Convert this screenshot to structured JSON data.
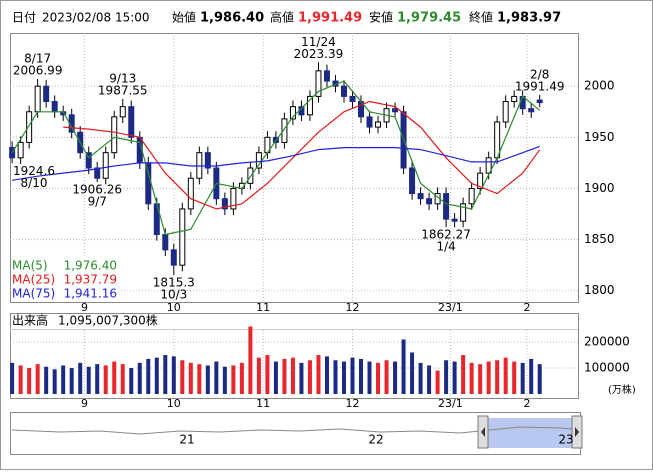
{
  "header": {
    "date_label": "日付",
    "datetime": "2023/02/08 15:00",
    "open_label": "始値",
    "open": "1,986.40",
    "high_label": "高値",
    "high": "1,991.49",
    "low_label": "安値",
    "low": "1,979.45",
    "close_label": "終値",
    "close": "1,983.97"
  },
  "chart_data": {
    "type": "candlestick",
    "x": [
      0,
      2,
      4,
      6,
      8,
      10,
      12,
      14,
      16,
      18,
      20,
      22,
      24,
      26,
      28,
      30,
      32,
      34,
      36,
      38,
      40,
      42,
      44,
      46,
      48,
      50,
      52,
      54,
      56,
      58,
      60,
      62,
      64,
      66,
      68,
      70,
      72,
      74,
      76,
      78,
      80,
      82,
      84,
      86,
      88,
      90,
      92,
      94,
      96,
      98,
      100,
      102,
      104,
      106,
      108,
      110,
      112,
      114,
      116,
      118,
      120,
      122,
      124
    ],
    "open": [
      1940,
      1930,
      1945,
      1975,
      2000,
      1985,
      1975,
      1972,
      1955,
      1935,
      1920,
      1910,
      1935,
      1970,
      1980,
      1950,
      1925,
      1885,
      1855,
      1840,
      1825,
      1880,
      1910,
      1935,
      1920,
      1890,
      1880,
      1900,
      1905,
      1920,
      1935,
      1950,
      1945,
      1968,
      1980,
      1972,
      1990,
      2015,
      2005,
      2000,
      1990,
      1985,
      1970,
      1960,
      1965,
      1978,
      1975,
      1920,
      1895,
      1890,
      1885,
      1895,
      1870,
      1868,
      1885,
      1900,
      1915,
      1930,
      1965,
      1985,
      1990,
      1978,
      1986.4
    ],
    "high": [
      1946,
      1951,
      1981,
      2006.99,
      2006,
      1991,
      1981,
      1978,
      1961,
      1941,
      1926,
      1941,
      1976,
      1987.55,
      1986,
      1956,
      1931,
      1891,
      1861,
      1846,
      1886,
      1916,
      1941,
      1941,
      1926,
      1896,
      1906,
      1911,
      1926,
      1941,
      1956,
      1956,
      1974,
      1986,
      1986,
      1996,
      2023.39,
      2021,
      2011,
      2006,
      1996,
      1991,
      1976,
      1971,
      1984,
      1984,
      1981,
      1926,
      1901,
      1896,
      1901,
      1901,
      1876,
      1891,
      1906,
      1921,
      1936,
      1971,
      1991,
      1996,
      1996,
      1984,
      1991.49
    ],
    "low": [
      1924.6,
      1924,
      1939,
      1969,
      1979,
      1969,
      1966,
      1949,
      1929,
      1914,
      1906.26,
      1904,
      1929,
      1964,
      1944,
      1919,
      1879,
      1849,
      1834,
      1815.3,
      1819,
      1874,
      1904,
      1914,
      1884,
      1874,
      1874,
      1894,
      1899,
      1914,
      1929,
      1939,
      1939,
      1962,
      1966,
      1966,
      1984,
      1999,
      1994,
      1984,
      1979,
      1964,
      1954,
      1954,
      1959,
      1969,
      1914,
      1889,
      1884,
      1879,
      1879,
      1862.27,
      1862,
      1862,
      1879,
      1894,
      1909,
      1924,
      1959,
      1979,
      1972,
      1969,
      1979.45
    ],
    "close": [
      1930,
      1945,
      1975,
      2000,
      1985,
      1975,
      1972,
      1955,
      1935,
      1920,
      1910,
      1935,
      1970,
      1980,
      1950,
      1925,
      1885,
      1855,
      1840,
      1825,
      1880,
      1910,
      1935,
      1920,
      1890,
      1880,
      1900,
      1905,
      1920,
      1935,
      1950,
      1945,
      1968,
      1980,
      1972,
      1990,
      2015,
      2005,
      2000,
      1990,
      1985,
      1970,
      1960,
      1965,
      1978,
      1975,
      1920,
      1895,
      1890,
      1885,
      1895,
      1870,
      1868,
      1885,
      1900,
      1915,
      1930,
      1965,
      1985,
      1990,
      1978,
      1975,
      1983.97
    ],
    "xlim": [
      -0.5,
      133
    ],
    "xticks": [
      {
        "value": 17,
        "label": "9"
      },
      {
        "value": 38,
        "label": "10"
      },
      {
        "value": 59,
        "label": "11"
      },
      {
        "value": 80,
        "label": "12"
      },
      {
        "value": 103,
        "label": "23/1"
      },
      {
        "value": 121,
        "label": "2"
      }
    ],
    "ylim": [
      1789,
      2052
    ],
    "yticks": [
      1800,
      1850,
      1900,
      1950,
      2000
    ],
    "grid": true,
    "up_color": "#ffffff",
    "down_color": "#1c2a84",
    "ma": {
      "x": [
        0,
        6,
        12,
        18,
        24,
        30,
        36,
        42,
        48,
        54,
        60,
        66,
        72,
        78,
        84,
        90,
        96,
        102,
        108,
        114,
        120,
        124
      ],
      "series": [
        {
          "name": "MA(5)",
          "color": "#2e8b2e",
          "value_label": "1,976.40",
          "values": [
            1935,
            1975,
            1975,
            1930,
            1950,
            1945,
            1855,
            1860,
            1905,
            1900,
            1935,
            1970,
            1995,
            2005,
            1975,
            1970,
            1905,
            1885,
            1880,
            1930,
            1990,
            1976.4
          ]
        },
        {
          "name": "MA(25)",
          "color": "#e31a1c",
          "value_label": "1,937.79",
          "values": [
            null,
            null,
            1960,
            1958,
            1955,
            1950,
            1915,
            1890,
            1880,
            1885,
            1905,
            1930,
            1955,
            1975,
            1985,
            1980,
            1960,
            1930,
            1905,
            1895,
            1915,
            1937.79
          ]
        },
        {
          "name": "MA(75)",
          "color": "#2222dd",
          "value_label": "1,941.16",
          "values": [
            1908,
            1912,
            1915,
            1918,
            1922,
            1925,
            1925,
            1922,
            1922,
            1925,
            1927,
            1932,
            1938,
            1940,
            1940,
            1940,
            1938,
            1932,
            1926,
            1926,
            1935,
            1941.16
          ]
        }
      ]
    },
    "annotations": {
      "highs": [
        {
          "date": "8/17",
          "value": 2006.99,
          "x": 6
        },
        {
          "date": "9/13",
          "value": 1987.55,
          "x": 26
        },
        {
          "date": "11/24",
          "value": 2023.39,
          "x": 72
        },
        {
          "date": "2/8",
          "value": 1991.49,
          "x": 124
        }
      ],
      "lows": [
        {
          "date": "8/10",
          "value": 1924.6,
          "x": 0
        },
        {
          "date": "9/7",
          "value": 1906.26,
          "x": 20
        },
        {
          "date": "10/3",
          "value": 1815.3,
          "x": 38
        },
        {
          "date": "1/4",
          "value": 1862.27,
          "x": 102
        }
      ]
    },
    "volume": {
      "title": "出来高",
      "total": "1,095,007,300株",
      "unit": "(万株)",
      "values": [
        120000,
        110000,
        100000,
        115000,
        105000,
        95000,
        110000,
        100000,
        120000,
        105000,
        115000,
        110000,
        125000,
        115000,
        100000,
        120000,
        135000,
        140000,
        150000,
        145000,
        130000,
        120000,
        115000,
        110000,
        125000,
        105000,
        110000,
        120000,
        260000,
        140000,
        150000,
        125000,
        135000,
        140000,
        120000,
        130000,
        150000,
        145000,
        130000,
        125000,
        140000,
        135000,
        125000,
        120000,
        130000,
        125000,
        210000,
        160000,
        120000,
        110000,
        90000,
        130000,
        125000,
        150000,
        120000,
        115000,
        125000,
        130000,
        140000,
        125000,
        120000,
        135000,
        115000
      ],
      "ylim": [
        0,
        285000
      ],
      "yticks": [
        100000,
        200000
      ],
      "up_color": "#e8262b",
      "down_color": "#1c2a84"
    },
    "navigator": {
      "labels": [
        "21",
        "22",
        "23"
      ]
    }
  }
}
